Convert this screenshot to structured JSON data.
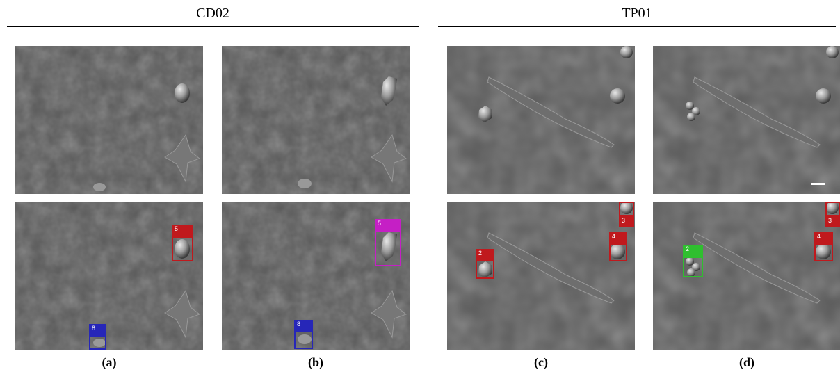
{
  "groups": [
    {
      "id": "cd02",
      "title": "CD02"
    },
    {
      "id": "tp01",
      "title": "TP01"
    }
  ],
  "captions": [
    "(a)",
    "(b)",
    "(c)",
    "(d)"
  ],
  "detections": [
    {
      "panel": "a",
      "label": "5",
      "color": "#c0191d"
    },
    {
      "panel": "a",
      "label": "8",
      "color": "#2626b8"
    },
    {
      "panel": "b",
      "label": "5",
      "color": "#c51fc5"
    },
    {
      "panel": "b",
      "label": "8",
      "color": "#2626b8"
    },
    {
      "panel": "c",
      "label": "2",
      "color": "#c0191d"
    },
    {
      "panel": "c",
      "label": "3",
      "color": "#c0191d"
    },
    {
      "panel": "c",
      "label": "4",
      "color": "#c0191d"
    },
    {
      "panel": "d",
      "label": "2",
      "color": "#2fbf2f"
    },
    {
      "panel": "d",
      "label": "3",
      "color": "#c0191d"
    },
    {
      "panel": "d",
      "label": "4",
      "color": "#c0191d"
    }
  ],
  "colors": {
    "background": "#ffffff",
    "micrograph": "#585858",
    "box_red": "#c0191d",
    "box_blue": "#2626b8",
    "box_magenta": "#c51fc5",
    "box_green": "#2fbf2f",
    "scale_bar": "#ffffff"
  }
}
